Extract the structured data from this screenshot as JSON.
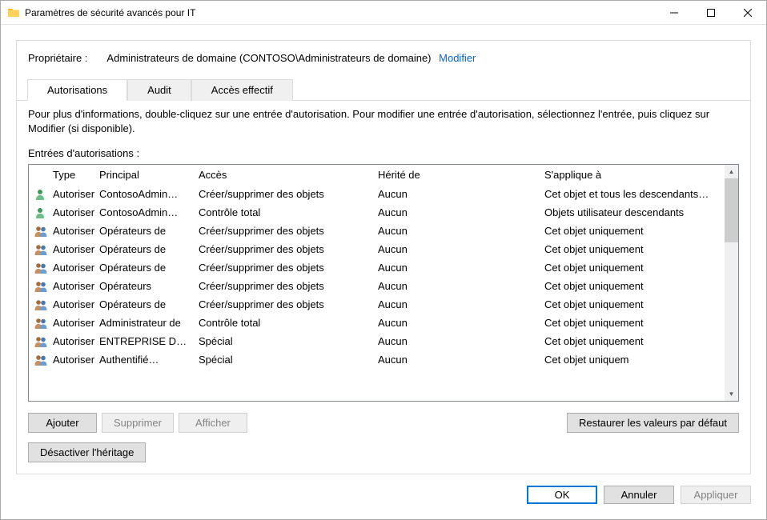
{
  "titlebar": {
    "title": "Paramètres de sécurité avancés pour IT",
    "folder_icon_color": "#ffd25c",
    "folder_icon_tab_color": "#ffb400"
  },
  "owner": {
    "label": "Propriétaire :",
    "value": "Administrateurs de domaine (CONTOSO\\Administrateurs de domaine)",
    "change_link": "Modifier"
  },
  "tabs": {
    "permissions": "Autorisations",
    "audit": "Audit",
    "effective": "Accès effectif"
  },
  "info_text": "Pour plus d'informations, double-cliquez sur une entrée d'autorisation. Pour modifier une entrée d'autorisation, sélectionnez l'entrée, puis cliquez sur Modifier (si disponible).",
  "entries_label": "Entrées d'autorisations :",
  "columns": {
    "type": "Type",
    "principal": "Principal",
    "access": "Accès",
    "inherited": "Hérité de",
    "applies": "S'applique à"
  },
  "rows": [
    {
      "icon": "single",
      "type": "Autoriser",
      "principal": "ContosoAdmin…",
      "access": "Créer/supprimer des objets",
      "inherited": "Aucun",
      "applies": "Cet objet et tous les descendants…"
    },
    {
      "icon": "single",
      "type": "Autoriser",
      "principal": "ContosoAdmin…",
      "access": "Contrôle total",
      "inherited": "Aucun",
      "applies": "Objets utilisateur descendants"
    },
    {
      "icon": "group",
      "type": "Autoriser",
      "principal": "Opérateurs de",
      "access": "Créer/supprimer des objets",
      "inherited": "Aucun",
      "applies": "Cet objet uniquement"
    },
    {
      "icon": "group",
      "type": "Autoriser",
      "principal": "Opérateurs de",
      "access": "Créer/supprimer des objets",
      "inherited": "Aucun",
      "applies": "Cet objet uniquement"
    },
    {
      "icon": "group",
      "type": "Autoriser",
      "principal": "Opérateurs de",
      "access": "Créer/supprimer des objets",
      "inherited": "Aucun",
      "applies": "Cet objet uniquement"
    },
    {
      "icon": "group",
      "type": "Autoriser",
      "principal": "Opérateurs",
      "access": "Créer/supprimer des objets",
      "inherited": "Aucun",
      "applies": "Cet objet uniquement"
    },
    {
      "icon": "group",
      "type": "Autoriser",
      "principal": "Opérateurs de",
      "access": "Créer/supprimer des objets",
      "inherited": "Aucun",
      "applies": "Cet objet uniquement"
    },
    {
      "icon": "group",
      "type": "Autoriser",
      "principal": "Administrateur de",
      "access": "Contrôle total",
      "inherited": "Aucun",
      "applies": "Cet objet uniquement"
    },
    {
      "icon": "group",
      "type": "Autoriser",
      "principal": "ENTREPRISE D…",
      "access": "Spécial",
      "inherited": "Aucun",
      "applies": "Cet objet uniquement"
    },
    {
      "icon": "group",
      "type": "Autoriser",
      "principal": "Authentifié…",
      "access": "Spécial",
      "inherited": "Aucun",
      "applies": "Cet objet uniquem"
    }
  ],
  "buttons": {
    "add": "Ajouter",
    "remove": "Supprimer",
    "view": "Afficher",
    "restore": "Restaurer les valeurs par défaut",
    "disable_inherit": "Désactiver l'héritage",
    "ok": "OK",
    "cancel": "Annuler",
    "apply": "Appliquer"
  },
  "icon_colors": {
    "single_head": "#3a9d5d",
    "single_body": "#6abd86",
    "group_head1": "#a56c3e",
    "group_body1": "#c98f5c",
    "group_head2": "#4678b2",
    "group_body2": "#6e9ccd"
  }
}
